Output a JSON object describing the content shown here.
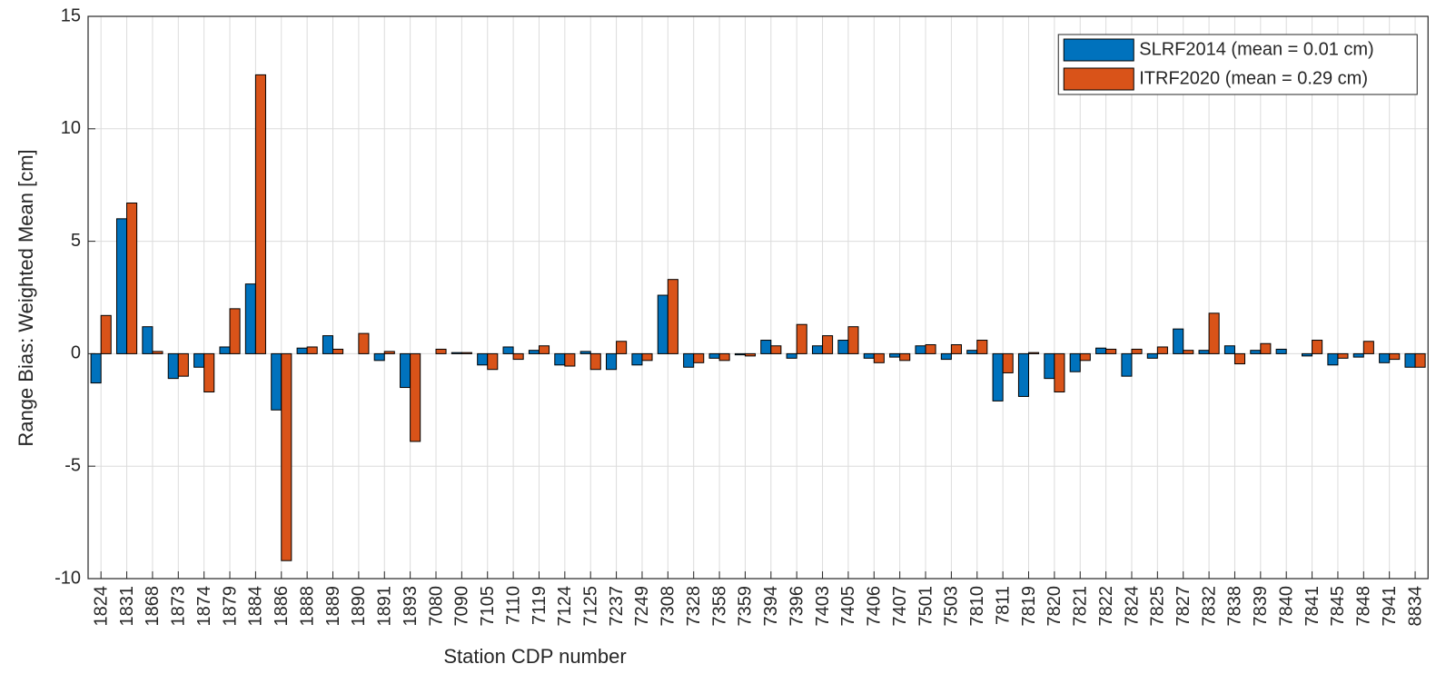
{
  "chart_data": {
    "type": "bar",
    "x_label": "Station CDP number",
    "y_label": "Range Bias: Weighted Mean [cm]",
    "categories": [
      "1824",
      "1831",
      "1868",
      "1873",
      "1874",
      "1879",
      "1884",
      "1886",
      "1888",
      "1889",
      "1890",
      "1891",
      "1893",
      "7080",
      "7090",
      "7105",
      "7110",
      "7119",
      "7124",
      "7125",
      "7237",
      "7249",
      "7308",
      "7328",
      "7358",
      "7359",
      "7394",
      "7396",
      "7403",
      "7405",
      "7406",
      "7407",
      "7501",
      "7503",
      "7810",
      "7811",
      "7819",
      "7820",
      "7821",
      "7822",
      "7824",
      "7825",
      "7827",
      "7832",
      "7838",
      "7839",
      "7840",
      "7841",
      "7845",
      "7848",
      "7941",
      "8834"
    ],
    "series": [
      {
        "name": "SLRF2014 (mean = 0.01 cm)",
        "color": "#0072bd",
        "values": [
          -1.3,
          6.0,
          1.2,
          -1.1,
          -0.6,
          0.3,
          3.1,
          -2.5,
          0.25,
          0.8,
          0.0,
          -0.3,
          -1.5,
          0.0,
          0.05,
          -0.5,
          0.3,
          0.15,
          -0.5,
          0.1,
          -0.7,
          -0.5,
          2.6,
          -0.6,
          -0.2,
          -0.05,
          0.6,
          -0.2,
          0.35,
          0.6,
          -0.2,
          -0.15,
          0.35,
          -0.25,
          0.15,
          -2.1,
          -1.9,
          -1.1,
          -0.8,
          0.25,
          -1.0,
          -0.2,
          1.1,
          0.15,
          0.35,
          0.15,
          0.2,
          -0.1,
          -0.5,
          -0.15,
          -0.4,
          -0.6
        ]
      },
      {
        "name": "ITRF2020 (mean = 0.29 cm)",
        "color": "#d95319",
        "values": [
          1.7,
          6.7,
          0.1,
          -1.0,
          -1.7,
          2.0,
          12.4,
          -9.2,
          0.3,
          0.2,
          0.9,
          0.1,
          -3.9,
          0.2,
          0.05,
          -0.7,
          -0.25,
          0.35,
          -0.55,
          -0.7,
          0.55,
          -0.3,
          3.3,
          -0.4,
          -0.3,
          -0.1,
          0.35,
          1.3,
          0.8,
          1.2,
          -0.4,
          -0.3,
          0.4,
          0.4,
          0.6,
          -0.85,
          0.05,
          -1.7,
          -0.3,
          0.2,
          0.2,
          0.3,
          0.15,
          1.8,
          -0.45,
          0.45,
          0.0,
          0.6,
          -0.2,
          0.55,
          -0.25,
          -0.6
        ]
      }
    ],
    "ylim": [
      -10,
      15
    ],
    "yticks": [
      -10,
      -5,
      0,
      5,
      10,
      15
    ],
    "grid": true,
    "legend": "northeast"
  }
}
